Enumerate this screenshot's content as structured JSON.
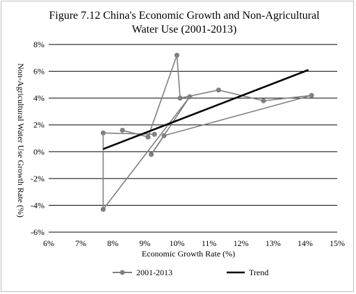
{
  "chart_data": {
    "type": "scatter",
    "title_lines": [
      "Figure 7.12 China's Economic Growth and Non-Agricultural",
      "Water Use (2001-2013)"
    ],
    "xlabel": "Economic Growth Rate (%)",
    "ylabel": "Non-Agricultural Water Use Growth Rate (%)",
    "xlim": [
      6,
      15
    ],
    "ylim": [
      -6,
      8
    ],
    "x_ticks": [
      6,
      7,
      8,
      9,
      10,
      11,
      12,
      13,
      14,
      15
    ],
    "y_ticks": [
      -6,
      -4,
      -2,
      0,
      2,
      4,
      6,
      8
    ],
    "x_tick_labels": [
      "6%",
      "7%",
      "8%",
      "9%",
      "10%",
      "11%",
      "12%",
      "13%",
      "14%",
      "15%"
    ],
    "y_tick_labels": [
      "-6%",
      "-4%",
      "-2%",
      "0%",
      "2%",
      "4%",
      "6%",
      "8%"
    ],
    "grid": "horizontal",
    "legend_position": "bottom",
    "series": [
      {
        "name": "2001-2013",
        "kind": "line-markers",
        "color": "#808080",
        "points": [
          {
            "x": 8.3,
            "y": 1.6
          },
          {
            "x": 9.1,
            "y": 1.1
          },
          {
            "x": 10.0,
            "y": 7.2
          },
          {
            "x": 10.1,
            "y": 4.0
          },
          {
            "x": 11.3,
            "y": 4.6
          },
          {
            "x": 12.7,
            "y": 3.8
          },
          {
            "x": 14.2,
            "y": 4.2
          },
          {
            "x": 9.6,
            "y": 1.2
          },
          {
            "x": 9.2,
            "y": -0.2
          },
          {
            "x": 10.4,
            "y": 4.1
          },
          {
            "x": 7.7,
            "y": -4.3
          },
          {
            "x": 7.7,
            "y": 1.4
          },
          {
            "x": 9.3,
            "y": 1.3
          }
        ]
      },
      {
        "name": "Trend",
        "kind": "line",
        "color": "#000000",
        "points": [
          {
            "x": 7.7,
            "y": 0.2
          },
          {
            "x": 14.1,
            "y": 6.1
          }
        ]
      }
    ]
  }
}
